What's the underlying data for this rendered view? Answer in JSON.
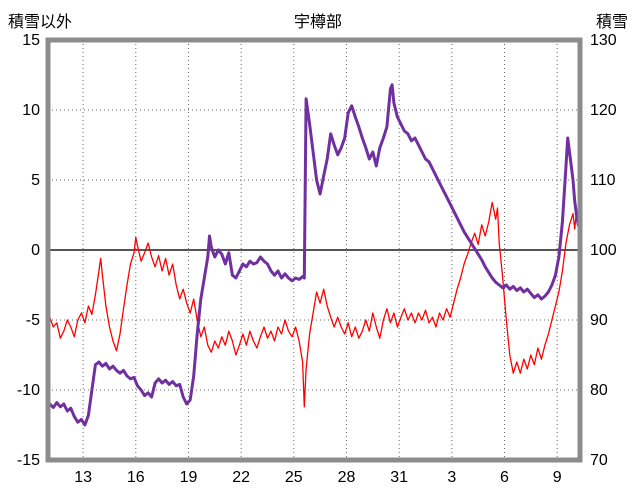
{
  "header": {
    "left_axis_label": "積雪以外",
    "title": "宇樽部",
    "right_axis_label": "積雪"
  },
  "colors": {
    "series_other": "#ff0000",
    "series_snow": "#7030a0",
    "frame": "#8c8c8c",
    "grid": "#666666",
    "zero_line": "#555555",
    "text": "#000000",
    "background": "#ffffff"
  },
  "chart_data": {
    "type": "line",
    "title": "宇樽部",
    "grid": true,
    "legend_position": "none",
    "xlim": [
      11.0,
      41.3
    ],
    "left_ylim": [
      -15,
      15
    ],
    "right_ylim": [
      70,
      130
    ],
    "left_yticks": [
      15,
      10,
      5,
      0,
      -5,
      -10,
      -15
    ],
    "right_yticks": [
      130,
      120,
      110,
      100,
      90,
      80,
      70
    ],
    "x_ticks": [
      {
        "pos": 13,
        "label": "13"
      },
      {
        "pos": 16,
        "label": "16"
      },
      {
        "pos": 19,
        "label": "19"
      },
      {
        "pos": 22,
        "label": "22"
      },
      {
        "pos": 25,
        "label": "25"
      },
      {
        "pos": 28,
        "label": "28"
      },
      {
        "pos": 31,
        "label": "31"
      },
      {
        "pos": 34,
        "label": "3"
      },
      {
        "pos": 37,
        "label": "6"
      },
      {
        "pos": 40,
        "label": "9"
      }
    ],
    "series": [
      {
        "name": "積雪以外",
        "axis": "left",
        "color": "#ff0000",
        "width": 1.3,
        "x": [
          11.1,
          11.3,
          11.5,
          11.7,
          11.9,
          12.1,
          12.3,
          12.5,
          12.7,
          12.9,
          13.1,
          13.3,
          13.5,
          13.7,
          13.9,
          14.0,
          14.1,
          14.3,
          14.5,
          14.7,
          14.9,
          15.1,
          15.3,
          15.5,
          15.7,
          15.9,
          16.0,
          16.1,
          16.3,
          16.5,
          16.7,
          16.9,
          17.1,
          17.3,
          17.5,
          17.7,
          17.9,
          18.1,
          18.3,
          18.5,
          18.7,
          18.9,
          19.1,
          19.3,
          19.5,
          19.7,
          19.9,
          20.1,
          20.3,
          20.5,
          20.7,
          20.9,
          21.1,
          21.3,
          21.5,
          21.7,
          21.9,
          22.1,
          22.3,
          22.5,
          22.7,
          22.9,
          23.1,
          23.3,
          23.5,
          23.7,
          23.9,
          24.1,
          24.3,
          24.5,
          24.7,
          24.9,
          25.1,
          25.3,
          25.5,
          25.6,
          25.7,
          25.9,
          26.1,
          26.3,
          26.5,
          26.7,
          26.9,
          27.1,
          27.3,
          27.5,
          27.7,
          27.9,
          28.1,
          28.3,
          28.5,
          28.7,
          28.9,
          29.1,
          29.3,
          29.5,
          29.7,
          29.9,
          30.1,
          30.3,
          30.5,
          30.7,
          30.9,
          31.1,
          31.3,
          31.5,
          31.7,
          31.9,
          32.1,
          32.3,
          32.5,
          32.7,
          32.9,
          33.1,
          33.3,
          33.5,
          33.7,
          33.9,
          34.1,
          34.3,
          34.5,
          34.7,
          34.9,
          35.1,
          35.3,
          35.5,
          35.7,
          35.9,
          36.1,
          36.3,
          36.5,
          36.6,
          36.7,
          36.9,
          37.1,
          37.3,
          37.5,
          37.7,
          37.9,
          38.1,
          38.3,
          38.5,
          38.7,
          38.9,
          39.1,
          39.3,
          39.5,
          39.7,
          39.9,
          40.1,
          40.3,
          40.5,
          40.7,
          40.9,
          41.0,
          41.1,
          41.2
        ],
        "y": [
          -4.8,
          -5.5,
          -5.2,
          -6.3,
          -5.8,
          -5.0,
          -5.5,
          -6.2,
          -5.0,
          -4.5,
          -5.2,
          -4.0,
          -4.6,
          -3.2,
          -1.5,
          -0.6,
          -1.8,
          -4.0,
          -5.5,
          -6.5,
          -7.2,
          -6.0,
          -4.2,
          -2.5,
          -1.0,
          -0.2,
          0.9,
          0.3,
          -0.8,
          -0.2,
          0.5,
          -0.5,
          -1.2,
          -0.4,
          -1.5,
          -0.6,
          -1.8,
          -1.0,
          -2.5,
          -3.5,
          -2.8,
          -3.8,
          -4.5,
          -3.5,
          -5.0,
          -6.2,
          -5.5,
          -6.8,
          -7.3,
          -6.5,
          -7.0,
          -6.2,
          -6.8,
          -5.8,
          -6.5,
          -7.5,
          -6.8,
          -6.0,
          -6.8,
          -5.8,
          -6.5,
          -7.0,
          -6.2,
          -5.5,
          -6.3,
          -5.8,
          -6.5,
          -5.5,
          -6.0,
          -5.0,
          -5.8,
          -6.2,
          -5.5,
          -6.5,
          -8.0,
          -11.2,
          -8.5,
          -6.0,
          -4.5,
          -3.0,
          -3.8,
          -2.8,
          -4.0,
          -4.8,
          -5.5,
          -4.8,
          -5.5,
          -6.0,
          -5.2,
          -6.2,
          -5.5,
          -6.3,
          -5.8,
          -5.0,
          -5.8,
          -4.5,
          -5.5,
          -6.3,
          -5.0,
          -4.2,
          -5.2,
          -4.5,
          -5.5,
          -4.8,
          -4.2,
          -5.0,
          -4.5,
          -5.2,
          -4.5,
          -5.0,
          -4.3,
          -5.2,
          -4.8,
          -5.5,
          -4.5,
          -5.0,
          -4.2,
          -4.8,
          -3.8,
          -2.8,
          -2.0,
          -1.0,
          -0.3,
          0.5,
          1.2,
          0.4,
          1.8,
          1.0,
          2.0,
          3.4,
          2.2,
          3.0,
          0.5,
          -2.0,
          -5.0,
          -7.5,
          -8.8,
          -8.0,
          -8.8,
          -7.8,
          -8.5,
          -7.5,
          -8.2,
          -7.0,
          -7.8,
          -6.8,
          -6.0,
          -5.0,
          -4.0,
          -3.0,
          -1.5,
          0.5,
          1.8,
          2.6,
          1.5,
          2.8,
          2.2
        ]
      },
      {
        "name": "積雪",
        "axis": "right",
        "color": "#7030a0",
        "width": 3,
        "x": [
          11.1,
          11.3,
          11.5,
          11.7,
          11.9,
          12.1,
          12.3,
          12.5,
          12.7,
          12.9,
          13.1,
          13.3,
          13.5,
          13.7,
          13.9,
          14.1,
          14.3,
          14.5,
          14.7,
          14.9,
          15.1,
          15.3,
          15.5,
          15.7,
          15.9,
          16.1,
          16.3,
          16.5,
          16.7,
          16.9,
          17.1,
          17.3,
          17.5,
          17.7,
          17.9,
          18.1,
          18.3,
          18.5,
          18.7,
          18.9,
          19.1,
          19.3,
          19.5,
          19.7,
          19.9,
          20.1,
          20.2,
          20.3,
          20.5,
          20.7,
          20.9,
          21.1,
          21.3,
          21.5,
          21.7,
          21.9,
          22.1,
          22.3,
          22.5,
          22.7,
          22.9,
          23.1,
          23.3,
          23.5,
          23.7,
          23.9,
          24.1,
          24.3,
          24.5,
          24.7,
          24.9,
          25.1,
          25.3,
          25.5,
          25.6,
          25.7,
          25.9,
          26.1,
          26.3,
          26.5,
          26.7,
          26.9,
          27.1,
          27.3,
          27.5,
          27.7,
          27.9,
          28.1,
          28.3,
          28.5,
          28.7,
          28.9,
          29.1,
          29.3,
          29.5,
          29.7,
          29.9,
          30.1,
          30.3,
          30.5,
          30.6,
          30.7,
          30.9,
          31.1,
          31.3,
          31.5,
          31.7,
          31.9,
          32.1,
          32.3,
          32.5,
          32.7,
          32.9,
          33.1,
          33.3,
          33.5,
          33.7,
          33.9,
          34.1,
          34.3,
          34.5,
          34.7,
          34.9,
          35.1,
          35.3,
          35.5,
          35.7,
          35.9,
          36.1,
          36.3,
          36.5,
          36.7,
          36.9,
          37.1,
          37.3,
          37.5,
          37.7,
          37.9,
          38.1,
          38.3,
          38.5,
          38.7,
          38.9,
          39.1,
          39.3,
          39.5,
          39.7,
          39.9,
          40.1,
          40.3,
          40.5,
          40.6,
          40.7,
          40.9,
          41.0,
          41.1,
          41.2
        ],
        "y": [
          78.0,
          77.5,
          78.2,
          77.6,
          78.0,
          77.0,
          77.4,
          76.2,
          75.4,
          75.8,
          75.0,
          76.4,
          80.0,
          83.6,
          84.0,
          83.4,
          83.8,
          83.0,
          83.4,
          82.8,
          82.4,
          82.8,
          82.0,
          81.6,
          81.8,
          80.6,
          80.0,
          79.2,
          79.6,
          79.0,
          81.0,
          81.6,
          81.0,
          81.4,
          80.8,
          81.2,
          80.6,
          80.8,
          79.0,
          78.0,
          78.6,
          82.0,
          88.0,
          93.0,
          96.0,
          99.0,
          102.0,
          100.4,
          99.0,
          100.0,
          99.4,
          98.0,
          99.6,
          96.4,
          96.0,
          97.0,
          98.0,
          97.6,
          98.4,
          98.0,
          98.2,
          99.0,
          98.4,
          98.0,
          97.0,
          96.4,
          97.0,
          96.0,
          96.6,
          96.0,
          95.6,
          96.0,
          95.8,
          96.2,
          96.0,
          121.6,
          118.0,
          114.0,
          110.0,
          108.0,
          110.6,
          113.0,
          116.6,
          115.0,
          113.6,
          114.6,
          116.0,
          119.6,
          120.6,
          119.0,
          117.6,
          116.0,
          114.6,
          113.0,
          114.0,
          112.0,
          114.6,
          116.0,
          117.6,
          123.0,
          123.6,
          121.0,
          119.0,
          118.0,
          117.0,
          116.6,
          115.6,
          116.0,
          115.0,
          114.0,
          113.0,
          112.6,
          111.6,
          110.6,
          109.6,
          108.6,
          107.6,
          106.6,
          105.6,
          104.6,
          103.6,
          102.6,
          101.8,
          101.0,
          100.2,
          99.4,
          98.6,
          97.6,
          96.8,
          96.0,
          95.4,
          95.0,
          94.6,
          95.0,
          94.4,
          94.8,
          94.2,
          94.6,
          94.0,
          94.4,
          93.8,
          93.2,
          93.6,
          93.0,
          93.4,
          94.0,
          95.0,
          96.4,
          99.0,
          104.0,
          112.0,
          116.0,
          114.0,
          110.0,
          107.0,
          105.0,
          103.6
        ]
      }
    ]
  }
}
